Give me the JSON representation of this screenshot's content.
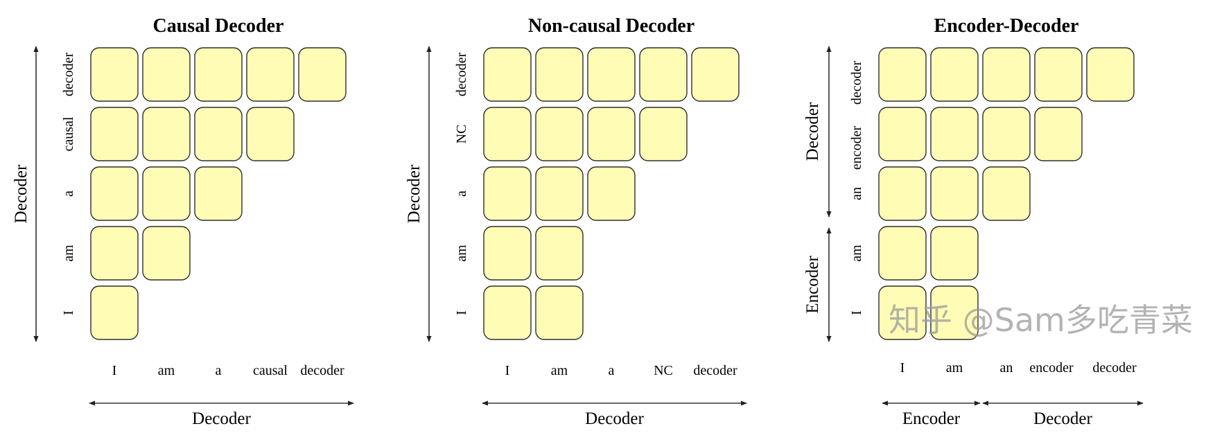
{
  "colors": {
    "cell_fill": "#fffcb6",
    "cell_stroke": "#2e2e2e",
    "arrow": "#333333"
  },
  "panels": [
    {
      "title": "Causal Decoder",
      "row_tokens": [
        "I",
        "am",
        "a",
        "causal",
        "decoder"
      ],
      "col_tokens": [
        "I",
        "am",
        "a",
        "causal",
        "decoder"
      ],
      "mask_counts": [
        1,
        2,
        3,
        4,
        5
      ],
      "y_axis": [
        {
          "label": "Decoder",
          "rows": 5
        }
      ],
      "x_axis": [
        {
          "label": "Decoder",
          "cols": 5
        }
      ]
    },
    {
      "title": "Non-causal Decoder",
      "row_tokens": [
        "I",
        "am",
        "a",
        "NC",
        "decoder"
      ],
      "col_tokens": [
        "I",
        "am",
        "a",
        "NC",
        "decoder"
      ],
      "mask_counts": [
        2,
        2,
        3,
        4,
        5
      ],
      "y_axis": [
        {
          "label": "Decoder",
          "rows": 5
        }
      ],
      "x_axis": [
        {
          "label": "Decoder",
          "cols": 5
        }
      ]
    },
    {
      "title": "Encoder-Decoder",
      "row_tokens": [
        "I",
        "am",
        "an",
        "encoder",
        "decoder"
      ],
      "col_tokens": [
        "I",
        "am",
        "an",
        "encoder",
        "decoder"
      ],
      "mask_counts": [
        2,
        2,
        3,
        4,
        5
      ],
      "y_axis": [
        {
          "label": "Encoder",
          "rows": 2
        },
        {
          "label": "Decoder",
          "rows": 3
        }
      ],
      "x_axis": [
        {
          "label": "Encoder",
          "cols": 2
        },
        {
          "label": "Decoder",
          "cols": 3
        }
      ]
    }
  ],
  "watermark": "知乎 @Sam多吃青菜"
}
